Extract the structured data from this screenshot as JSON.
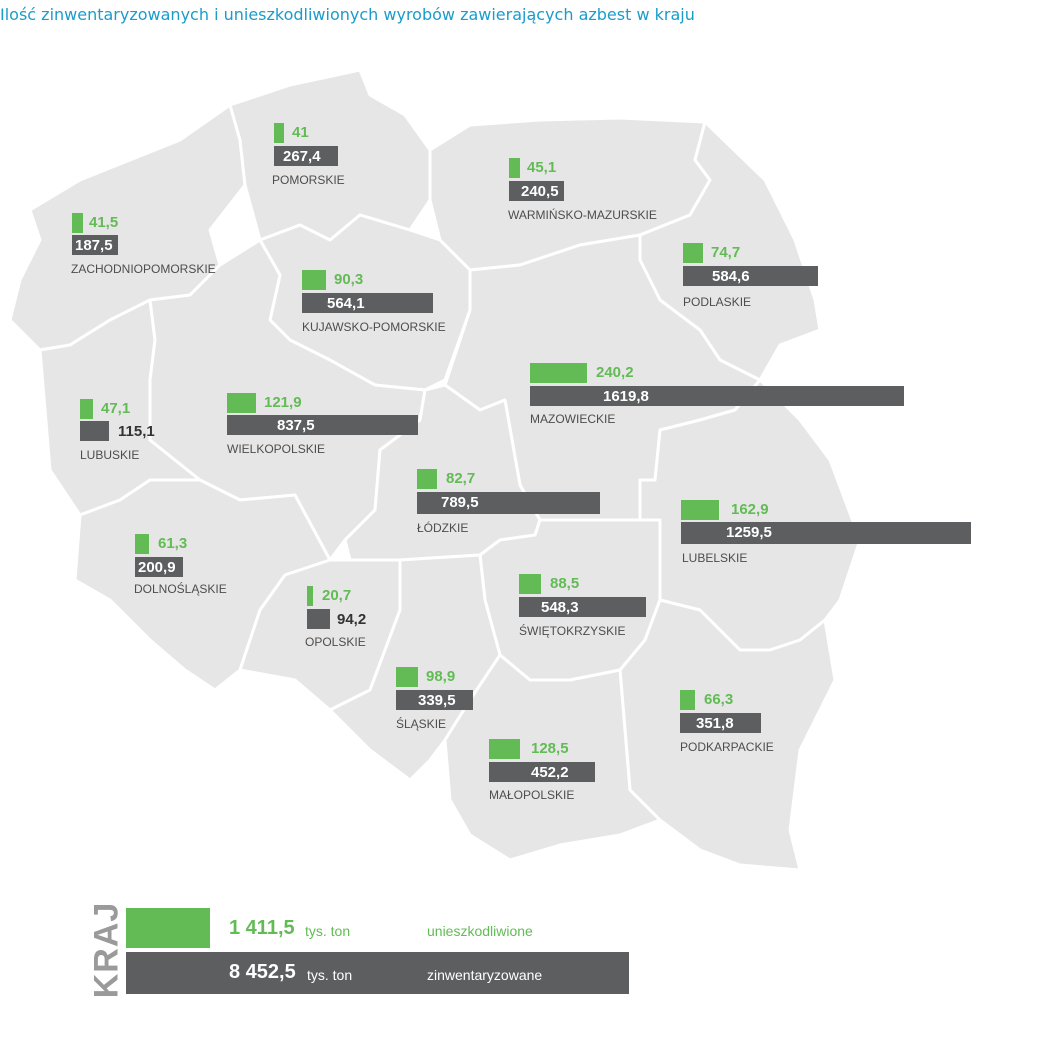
{
  "title": "Ilość zinwentaryzowanych i unieszkodliwionych wyrobów zawierających azbest w kraju",
  "colors": {
    "disposed": "#62bb55",
    "inventoried": "#5d5e60",
    "map_fill": "#e6e6e6",
    "title": "#1a9ccb"
  },
  "map_data": {
    "unit": "tys. ton",
    "regions": [
      {
        "name": "ZACHODNIOPOMORSKIE",
        "disposed": "41,5",
        "inventoried": "187,5"
      },
      {
        "name": "POMORSKIE",
        "disposed": "41",
        "inventoried": "267,4"
      },
      {
        "name": "WARMIŃSKO-MAZURSKIE",
        "disposed": "45,1",
        "inventoried": "240,5"
      },
      {
        "name": "PODLASKIE",
        "disposed": "74,7",
        "inventoried": "584,6"
      },
      {
        "name": "KUJAWSKO-POMORSKIE",
        "disposed": "90,3",
        "inventoried": "564,1"
      },
      {
        "name": "MAZOWIECKIE",
        "disposed": "240,2",
        "inventoried": "1619,8"
      },
      {
        "name": "LUBUSKIE",
        "disposed": "47,1",
        "inventoried": "115,1"
      },
      {
        "name": "WIELKOPOLSKIE",
        "disposed": "121,9",
        "inventoried": "837,5"
      },
      {
        "name": "ŁÓDZKIE",
        "disposed": "82,7",
        "inventoried": "789,5"
      },
      {
        "name": "LUBELSKIE",
        "disposed": "162,9",
        "inventoried": "1259,5"
      },
      {
        "name": "DOLNOŚLĄSKIE",
        "disposed": "61,3",
        "inventoried": "200,9"
      },
      {
        "name": "OPOLSKIE",
        "disposed": "20,7",
        "inventoried": "94,2"
      },
      {
        "name": "ŚWIĘTOKRZYSKIE",
        "disposed": "88,5",
        "inventoried": "548,3"
      },
      {
        "name": "ŚLĄSKIE",
        "disposed": "98,9",
        "inventoried": "339,5"
      },
      {
        "name": "PODKARPACKIE",
        "disposed": "66,3",
        "inventoried": "351,8"
      },
      {
        "name": "MAŁOPOLSKIE",
        "disposed": "128,5",
        "inventoried": "452,2"
      }
    ]
  },
  "totals": {
    "label": "KRAJ",
    "disposed_value": "1 411,5",
    "disposed_unit": "tys. ton",
    "disposed_label": "unieszkodliwione",
    "inventoried_value": "8 452,5",
    "inventoried_unit": "tys. ton",
    "inventoried_label": "zinwentaryzowane"
  }
}
